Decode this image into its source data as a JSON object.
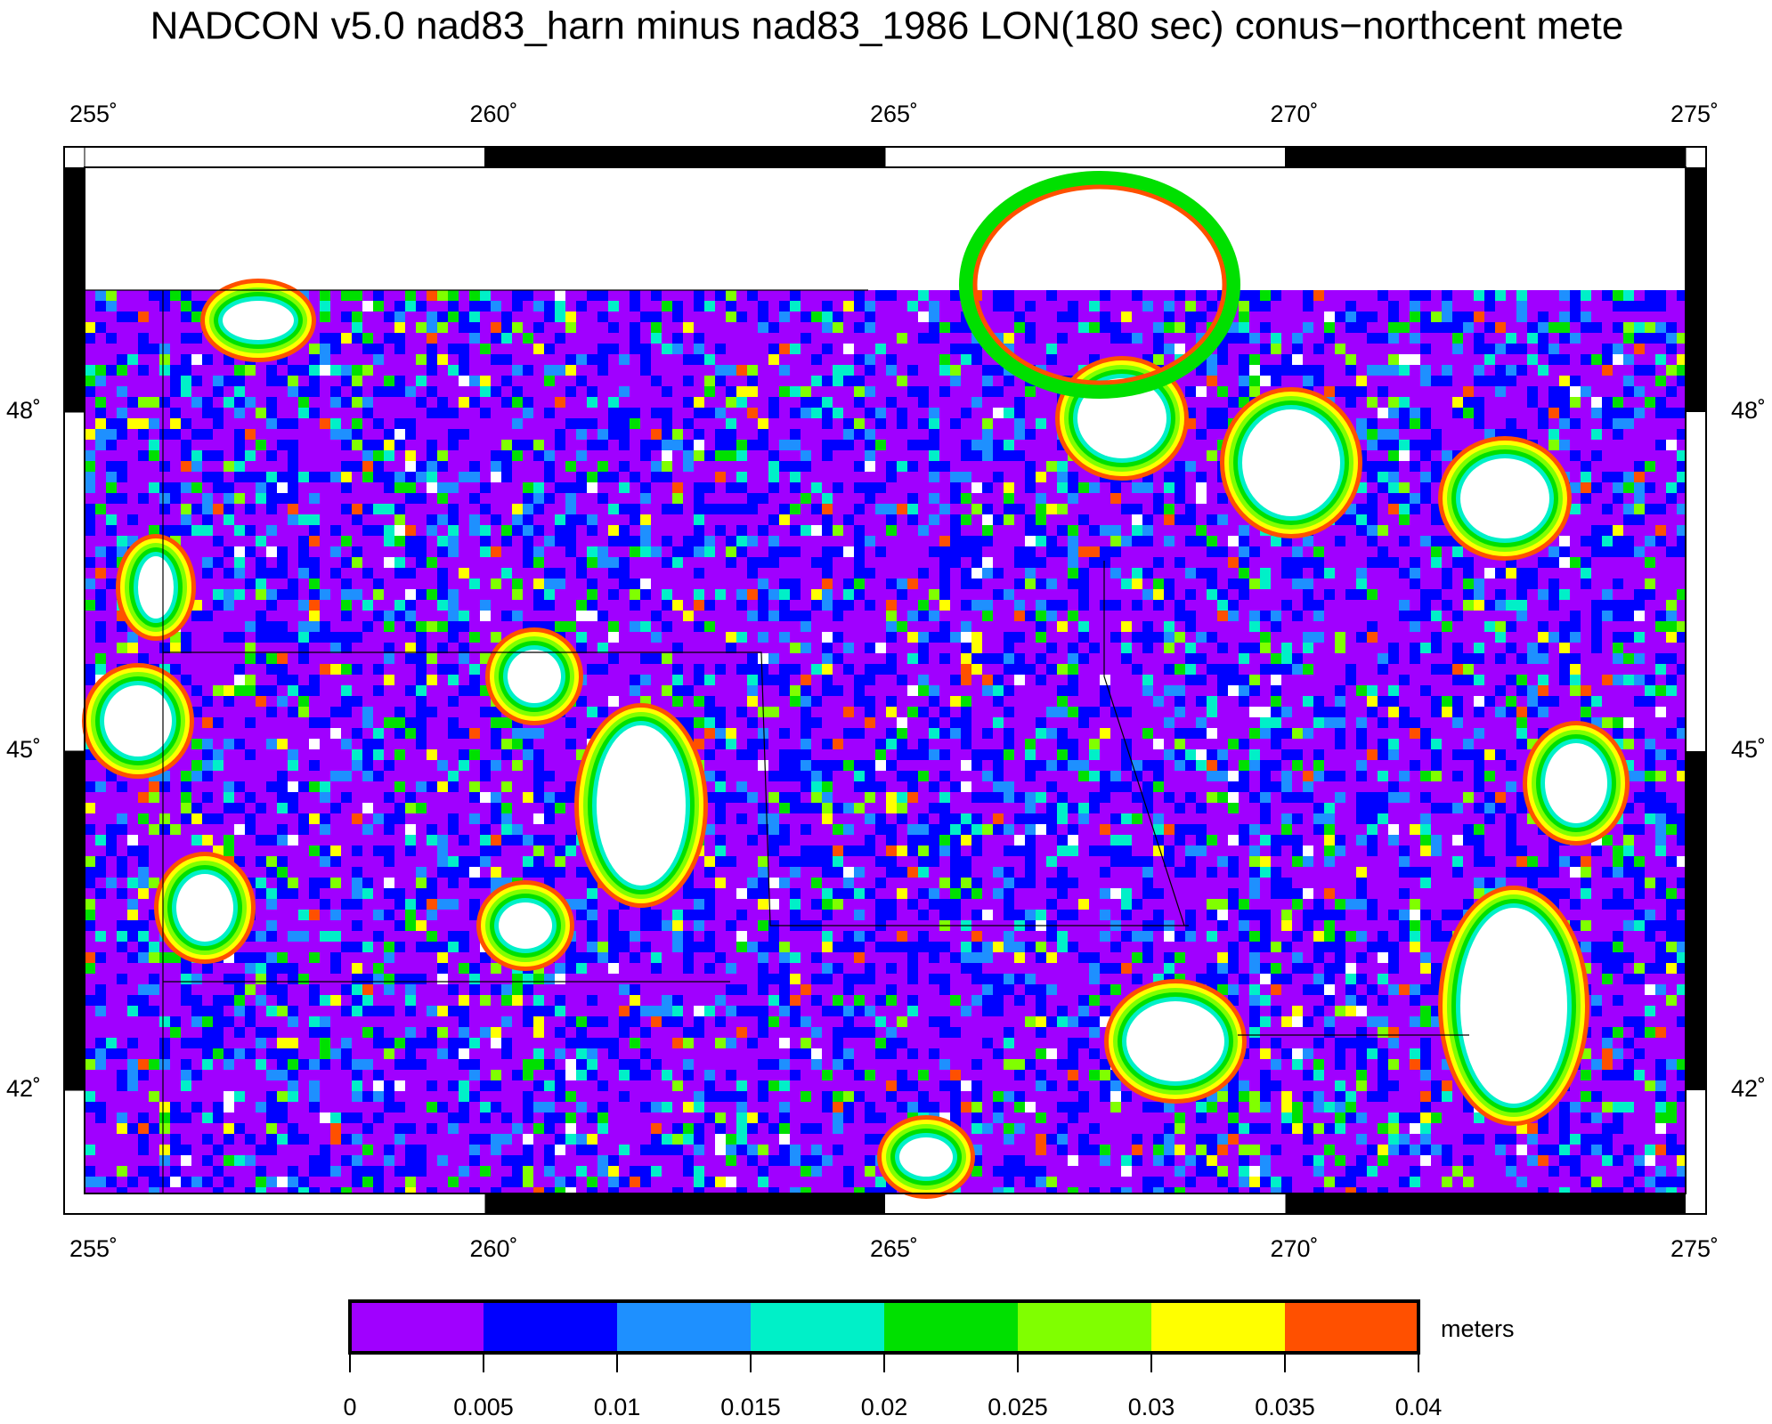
{
  "map": {
    "title": "NADCON v5.0 nad83_harn minus nad83_1986 LON(180 sec) conus−northcent mete",
    "lon_ticks": [
      {
        "value": 255,
        "label": "255˚"
      },
      {
        "value": 260,
        "label": "260˚"
      },
      {
        "value": 265,
        "label": "265˚"
      },
      {
        "value": 270,
        "label": "270˚"
      },
      {
        "value": 275,
        "label": "275˚"
      }
    ],
    "lat_ticks": [
      {
        "value": 48,
        "label": "48˚"
      },
      {
        "value": 45,
        "label": "45˚"
      },
      {
        "value": 42,
        "label": "42˚"
      }
    ],
    "colorbar": {
      "unit": "meters",
      "ticks": [
        0,
        0.005,
        0.01,
        0.015,
        0.02,
        0.025,
        0.03,
        0.035,
        0.04
      ],
      "colors": [
        "#a000ff",
        "#0000ff",
        "#1e90ff",
        "#00f0c8",
        "#00e000",
        "#80ff00",
        "#ffff00",
        "#ff5000"
      ]
    }
  }
}
